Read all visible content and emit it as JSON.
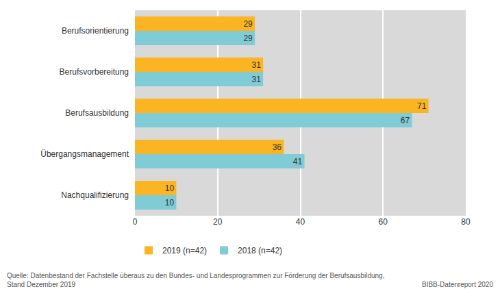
{
  "chart_data": {
    "type": "bar",
    "orientation": "horizontal",
    "categories": [
      "Berufsorientierung",
      "Berufsvorbereitung",
      "Berufsausbildung",
      "Übergangsmanagement",
      "Nachqualifizierung"
    ],
    "series": [
      {
        "name": "2019 (n=42)",
        "color": "#fbb422",
        "values": [
          29,
          31,
          71,
          36,
          10
        ]
      },
      {
        "name": "2018 (n=42)",
        "color": "#7fcbd6",
        "values": [
          29,
          31,
          67,
          41,
          10
        ]
      }
    ],
    "xlim": [
      0,
      80
    ],
    "xticks": [
      0,
      20,
      40,
      60,
      80
    ],
    "grid": true,
    "legend": "bottom-left",
    "data_labels": true,
    "annotations": [
      "Quelle: Datenbestand der Fachstelle überaus zu den Bundes- und Landesprogrammen zur Förderung der Berufsausbildung,",
      "Stand Dezember 2019",
      "BIBB-Datenreport 2020"
    ]
  }
}
